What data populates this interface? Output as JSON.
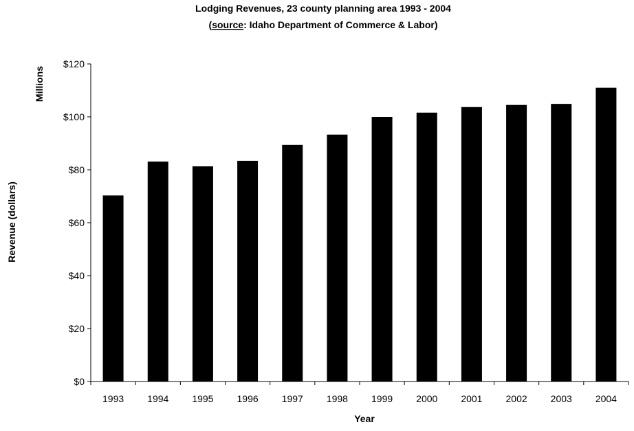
{
  "chart_data": {
    "type": "bar",
    "title_line1": "Lodging Revenues, 23 county planning area 1993 - 2004",
    "title_line2_open": "(",
    "title_line2_source": "source",
    "title_line2_rest": ": Idaho Department of Commerce & Labor)",
    "xlabel": "Year",
    "ylabel": "Revenue (dollars)",
    "y_units_label": "Millions",
    "categories": [
      "1993",
      "1994",
      "1995",
      "1996",
      "1997",
      "1998",
      "1999",
      "2000",
      "2001",
      "2002",
      "2003",
      "2004"
    ],
    "values": [
      70.3,
      83.1,
      81.3,
      83.4,
      89.4,
      93.3,
      100.0,
      101.6,
      103.7,
      104.5,
      104.9,
      111.0
    ],
    "ylim": [
      0,
      120
    ],
    "yticks": [
      0,
      20,
      40,
      60,
      80,
      100,
      120
    ],
    "ytick_labels": [
      "$0",
      "$20",
      "$40",
      "$60",
      "$80",
      "$100",
      "$120"
    ],
    "grid": false,
    "bar_color": "#000000"
  }
}
